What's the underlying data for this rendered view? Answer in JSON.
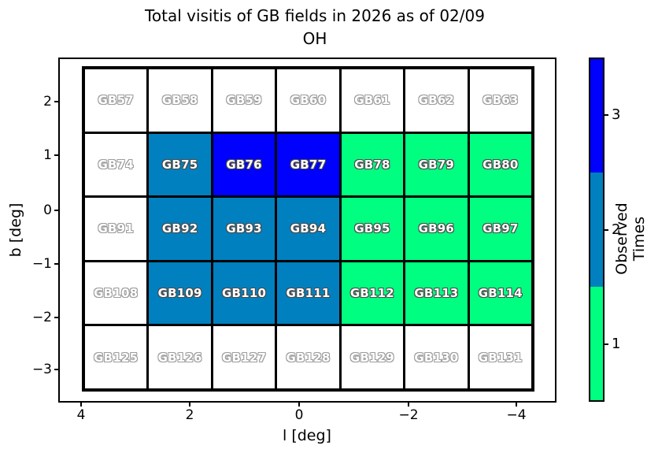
{
  "axes": {
    "x_tick_labels": [
      "4",
      "2",
      "0",
      "−2",
      "−4"
    ],
    "y_tick_labels": [
      "2",
      "1",
      "0",
      "−1",
      "−2",
      "−3"
    ]
  },
  "colorbar": {
    "label": "Observed Times",
    "tick_labels": [
      "3",
      "2",
      "1"
    ],
    "segments_top_to_bottom": [
      "#0000ff",
      "#0080bf",
      "#00ff80"
    ]
  },
  "visit_colors": {
    "0": "#ffffff",
    "1": "#00ff80",
    "2": "#0080bf",
    "3": "#0000ff"
  },
  "chart_data": {
    "type": "heatmap",
    "title": "Total visitis of GB fields in 2026 as of 02/09",
    "subtitle": "OH",
    "xlabel": "l [deg]",
    "ylabel": "b [deg]",
    "x_ticks": [
      4,
      2,
      0,
      -2,
      -4
    ],
    "y_ticks": [
      2,
      1,
      0,
      -1,
      -2,
      -3
    ],
    "x_axis_inverted": true,
    "xlim": [
      4.3,
      -4.6
    ],
    "ylim": [
      -3.4,
      2.7
    ],
    "grid_shape": [
      5,
      7
    ],
    "colorbar_label": "Observed Times",
    "colorbar_ticks": [
      1,
      2,
      3
    ],
    "color_scale": {
      "unobserved": "#ffffff",
      "1": "#00ff80",
      "2": "#0080bf",
      "3": "#0000ff"
    },
    "rows": [
      [
        {
          "field": "GB57",
          "visits": 0
        },
        {
          "field": "GB58",
          "visits": 0
        },
        {
          "field": "GB59",
          "visits": 0
        },
        {
          "field": "GB60",
          "visits": 0
        },
        {
          "field": "GB61",
          "visits": 0
        },
        {
          "field": "GB62",
          "visits": 0
        },
        {
          "field": "GB63",
          "visits": 0
        }
      ],
      [
        {
          "field": "GB74",
          "visits": 0
        },
        {
          "field": "GB75",
          "visits": 2
        },
        {
          "field": "GB76",
          "visits": 3
        },
        {
          "field": "GB77",
          "visits": 3
        },
        {
          "field": "GB78",
          "visits": 1
        },
        {
          "field": "GB79",
          "visits": 1
        },
        {
          "field": "GB80",
          "visits": 1
        }
      ],
      [
        {
          "field": "GB91",
          "visits": 0
        },
        {
          "field": "GB92",
          "visits": 2
        },
        {
          "field": "GB93",
          "visits": 2
        },
        {
          "field": "GB94",
          "visits": 2
        },
        {
          "field": "GB95",
          "visits": 1
        },
        {
          "field": "GB96",
          "visits": 1
        },
        {
          "field": "GB97",
          "visits": 1
        }
      ],
      [
        {
          "field": "GB108",
          "visits": 0
        },
        {
          "field": "GB109",
          "visits": 2
        },
        {
          "field": "GB110",
          "visits": 2
        },
        {
          "field": "GB111",
          "visits": 2
        },
        {
          "field": "GB112",
          "visits": 1
        },
        {
          "field": "GB113",
          "visits": 1
        },
        {
          "field": "GB114",
          "visits": 1
        }
      ],
      [
        {
          "field": "GB125",
          "visits": 0
        },
        {
          "field": "GB126",
          "visits": 0
        },
        {
          "field": "GB127",
          "visits": 0
        },
        {
          "field": "GB128",
          "visits": 0
        },
        {
          "field": "GB129",
          "visits": 0
        },
        {
          "field": "GB130",
          "visits": 0
        },
        {
          "field": "GB131",
          "visits": 0
        }
      ]
    ]
  }
}
